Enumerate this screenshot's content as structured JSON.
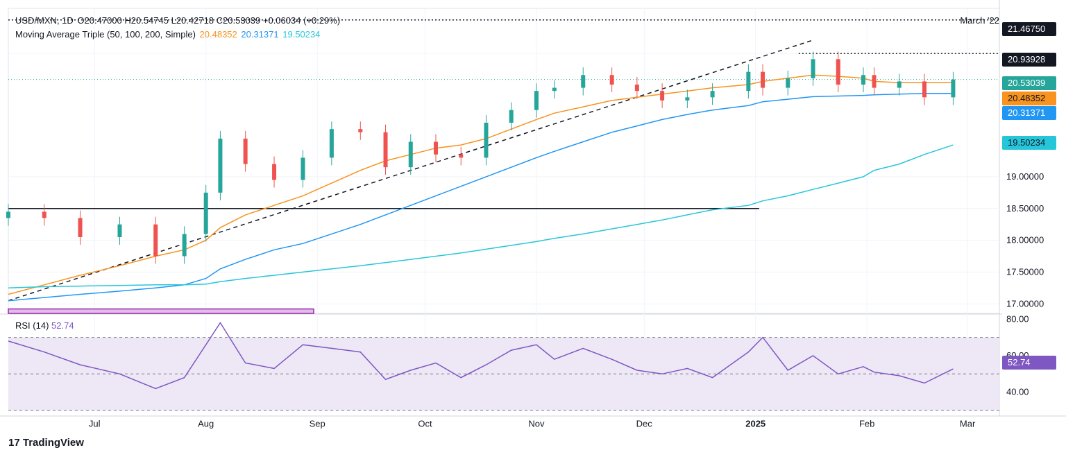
{
  "header": {
    "symbol": "USD/MXN, 1D",
    "ohlc": "O20.47000  H20.54745  L20.42718  C20.53039  +0.06034 (+0.29%)",
    "ma_label": "Moving Average Triple (50, 100, 200, Simple)",
    "ma50": "20.48352",
    "ma100": "20.31371",
    "ma200": "19.50234",
    "date_note": "March '22"
  },
  "rsi": {
    "label": "RSI (14)",
    "value": "52.74",
    "ticks": [
      "80.00",
      "60.00",
      "40.00"
    ]
  },
  "badges": {
    "level_high": "21.46750",
    "level_mid": "20.93928",
    "last": "20.53039",
    "ma50": "20.48352",
    "ma100": "20.31371",
    "ma200": "19.50234",
    "rsi": "52.74"
  },
  "branding": {
    "logo_text": "TradingView"
  },
  "colors": {
    "up": "#26a69a",
    "down": "#ef5350",
    "ma50": "#f7931e",
    "ma100": "#2196f3",
    "ma200": "#26c6da",
    "rsi": "#7e57c2",
    "rsi_band": "#ede7f6",
    "purple_box": "#e1bee7"
  },
  "chart_data": [
    {
      "type": "candlestick",
      "title": "USD/MXN, 1D",
      "x_ticks": [
        "Jul",
        "Aug",
        "Sep",
        "Oct",
        "Nov",
        "Dec",
        "2025",
        "Feb",
        "Mar"
      ],
      "y_ticks": [
        "21.46750",
        "20.93928",
        "19.00000",
        "18.50000",
        "18.00000",
        "17.50000",
        "17.00000"
      ],
      "ylim": [
        16.85,
        21.65
      ],
      "grid": true,
      "horizontal_levels": [
        21.4675,
        20.93928,
        18.5
      ],
      "trendline": {
        "from": [
          "2024-06-07",
          17.05
        ],
        "to": [
          "2025-01-17",
          21.15
        ]
      },
      "x": [
        "2024-06-07",
        "2024-06-17",
        "2024-06-27",
        "2024-07-08",
        "2024-07-18",
        "2024-07-26",
        "2024-08-01",
        "2024-08-05",
        "2024-08-12",
        "2024-08-20",
        "2024-08-28",
        "2024-09-05",
        "2024-09-13",
        "2024-09-20",
        "2024-09-27",
        "2024-10-04",
        "2024-10-11",
        "2024-10-18",
        "2024-10-25",
        "2024-11-01",
        "2024-11-06",
        "2024-11-14",
        "2024-11-22",
        "2024-11-29",
        "2024-12-06",
        "2024-12-13",
        "2024-12-20",
        "2024-12-30",
        "2025-01-03",
        "2025-01-10",
        "2025-01-17",
        "2025-01-24",
        "2025-01-31",
        "2025-02-03",
        "2025-02-10",
        "2025-02-17",
        "2025-02-25"
      ],
      "close": [
        18.45,
        18.35,
        18.05,
        18.25,
        17.75,
        18.1,
        18.75,
        19.6,
        19.2,
        18.95,
        19.3,
        19.75,
        19.7,
        19.15,
        19.55,
        19.35,
        19.3,
        19.85,
        20.05,
        20.35,
        20.4,
        20.6,
        20.45,
        20.35,
        20.2,
        20.25,
        20.35,
        20.65,
        20.4,
        20.55,
        20.85,
        20.45,
        20.6,
        20.4,
        20.5,
        20.25,
        20.53
      ],
      "series": [
        {
          "name": "MA 50",
          "values": [
            17.15,
            17.3,
            17.45,
            17.6,
            17.75,
            17.85,
            18.0,
            18.2,
            18.4,
            18.55,
            18.7,
            18.9,
            19.1,
            19.25,
            19.35,
            19.45,
            19.5,
            19.6,
            19.75,
            19.9,
            20.0,
            20.1,
            20.2,
            20.25,
            20.3,
            20.35,
            20.4,
            20.45,
            20.5,
            20.55,
            20.6,
            20.58,
            20.55,
            20.5,
            20.48,
            20.48,
            20.48
          ]
        },
        {
          "name": "MA 100",
          "values": [
            17.05,
            17.1,
            17.15,
            17.2,
            17.25,
            17.3,
            17.4,
            17.55,
            17.7,
            17.85,
            17.95,
            18.1,
            18.25,
            18.4,
            18.55,
            18.7,
            18.85,
            19.0,
            19.15,
            19.3,
            19.4,
            19.55,
            19.7,
            19.8,
            19.9,
            19.98,
            20.05,
            20.12,
            20.18,
            20.22,
            20.26,
            20.27,
            20.28,
            20.29,
            20.3,
            20.31,
            20.31
          ]
        },
        {
          "name": "MA 200",
          "values": [
            17.25,
            17.27,
            17.28,
            17.29,
            17.3,
            17.3,
            17.31,
            17.35,
            17.4,
            17.45,
            17.5,
            17.55,
            17.6,
            17.65,
            17.7,
            17.75,
            17.8,
            17.86,
            17.92,
            17.98,
            18.03,
            18.1,
            18.18,
            18.25,
            18.32,
            18.4,
            18.48,
            18.55,
            18.62,
            18.7,
            18.8,
            18.9,
            19.0,
            19.1,
            19.2,
            19.35,
            19.5
          ]
        }
      ]
    },
    {
      "type": "line",
      "title": "RSI (14)",
      "y_ticks": [
        "80.00",
        "60.00",
        "40.00"
      ],
      "ylim": [
        30,
        82
      ],
      "x": [
        "2024-06-07",
        "2024-06-17",
        "2024-06-27",
        "2024-07-08",
        "2024-07-18",
        "2024-07-26",
        "2024-08-01",
        "2024-08-05",
        "2024-08-12",
        "2024-08-20",
        "2024-08-28",
        "2024-09-05",
        "2024-09-13",
        "2024-09-20",
        "2024-09-27",
        "2024-10-04",
        "2024-10-11",
        "2024-10-18",
        "2024-10-25",
        "2024-11-01",
        "2024-11-06",
        "2024-11-14",
        "2024-11-22",
        "2024-11-29",
        "2024-12-06",
        "2024-12-13",
        "2024-12-20",
        "2024-12-30",
        "2025-01-03",
        "2025-01-10",
        "2025-01-17",
        "2025-01-24",
        "2025-01-31",
        "2025-02-03",
        "2025-02-10",
        "2025-02-17",
        "2025-02-25"
      ],
      "series": [
        {
          "name": "RSI",
          "values": [
            68,
            62,
            55,
            50,
            42,
            48,
            66,
            78,
            56,
            53,
            66,
            64,
            62,
            47,
            52,
            56,
            48,
            55,
            63,
            66,
            58,
            64,
            58,
            52,
            50,
            53,
            48,
            62,
            70,
            52,
            60,
            50,
            54,
            51,
            49,
            45,
            52.74
          ]
        }
      ]
    }
  ]
}
